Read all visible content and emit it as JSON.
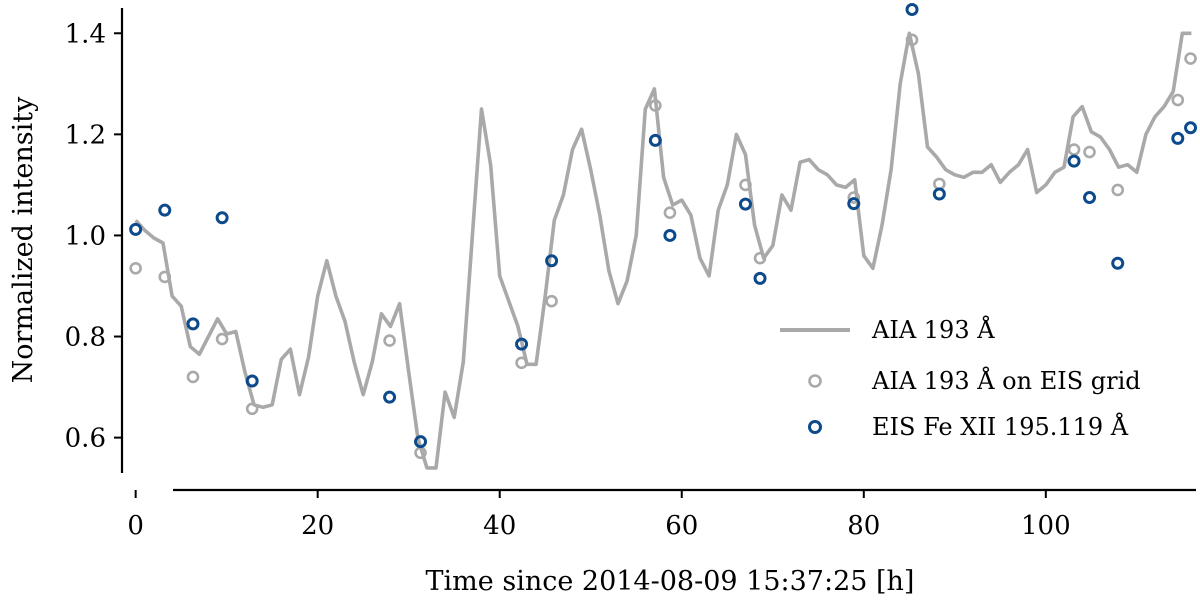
{
  "chart_data": {
    "type": "line",
    "xlabel": "Time since 2014-08-09 15:37:25 [h]",
    "ylabel": "Normalized intensity",
    "xlim": [
      -1.5,
      116.5
    ],
    "ylim": [
      0.53,
      1.45
    ],
    "x_ticks": [
      0,
      20,
      40,
      60,
      80,
      100
    ],
    "y_ticks": [
      0.6,
      0.8,
      1.0,
      1.2,
      1.4
    ],
    "x_tick_labels": [
      "0",
      "20",
      "40",
      "60",
      "80",
      "100"
    ],
    "y_tick_labels": [
      "0.6",
      "0.8",
      "1.0",
      "1.2",
      "1.4"
    ],
    "grid": false,
    "legend_position": "right",
    "colors": {
      "aia": "#a9a9a9",
      "eis": "#0d4a8c",
      "axis": "#000000"
    },
    "series": [
      {
        "name": "AIA 193 Å",
        "kind": "line",
        "x": [
          0,
          1,
          2,
          3,
          4,
          5,
          6,
          7,
          8,
          9,
          10,
          11,
          12,
          13,
          14,
          15,
          16,
          17,
          18,
          19,
          20,
          21,
          22,
          23,
          24,
          25,
          26,
          27,
          28,
          29,
          30,
          31,
          32,
          33,
          34,
          35,
          36,
          37,
          38,
          39,
          40,
          41,
          42,
          43,
          44,
          45,
          46,
          47,
          48,
          49,
          50,
          51,
          52,
          53,
          54,
          55,
          56,
          57,
          58,
          59,
          60,
          61,
          62,
          63,
          64,
          65,
          66,
          67,
          68,
          69,
          70,
          71,
          72,
          73,
          74,
          75,
          76,
          77,
          78,
          79,
          80,
          81,
          82,
          83,
          84,
          85,
          86,
          87,
          88,
          89,
          90,
          91,
          92,
          93,
          94,
          95,
          96,
          97,
          98,
          99,
          100,
          101,
          102,
          103,
          104,
          105,
          106,
          107,
          108,
          109,
          110,
          111,
          112,
          113,
          114,
          115,
          116
        ],
        "y": [
          1.03,
          1.01,
          0.995,
          0.985,
          0.88,
          0.86,
          0.78,
          0.765,
          0.8,
          0.835,
          0.805,
          0.81,
          0.73,
          0.665,
          0.66,
          0.665,
          0.755,
          0.775,
          0.685,
          0.76,
          0.88,
          0.95,
          0.88,
          0.83,
          0.75,
          0.685,
          0.75,
          0.845,
          0.82,
          0.865,
          0.73,
          0.6,
          0.54,
          0.54,
          0.69,
          0.64,
          0.75,
          1.0,
          1.25,
          1.14,
          0.92,
          0.87,
          0.82,
          0.745,
          0.745,
          0.88,
          1.03,
          1.08,
          1.17,
          1.21,
          1.13,
          1.04,
          0.93,
          0.865,
          0.91,
          1.0,
          1.25,
          1.29,
          1.115,
          1.06,
          1.07,
          1.04,
          0.955,
          0.92,
          1.05,
          1.1,
          1.2,
          1.16,
          1.02,
          0.955,
          0.98,
          1.08,
          1.05,
          1.145,
          1.15,
          1.13,
          1.12,
          1.1,
          1.095,
          1.11,
          0.96,
          0.935,
          1.02,
          1.13,
          1.3,
          1.4,
          1.32,
          1.175,
          1.155,
          1.13,
          1.12,
          1.115,
          1.125,
          1.125,
          1.14,
          1.105,
          1.125,
          1.14,
          1.17,
          1.085,
          1.1,
          1.125,
          1.135,
          1.235,
          1.255,
          1.205,
          1.195,
          1.17,
          1.135,
          1.14,
          1.125,
          1.2,
          1.235,
          1.255,
          1.285,
          1.4,
          1.4
        ]
      },
      {
        "name": "AIA 193 Å on EIS grid",
        "kind": "scatter-hollow",
        "x": [
          0,
          3.2,
          6.3,
          9.5,
          12.8,
          27.9,
          31.3,
          42.4,
          45.7,
          57.1,
          58.7,
          67,
          68.6,
          78.9,
          85.3,
          88.3,
          103.1,
          104.8,
          107.9,
          114.5,
          115.9
        ],
        "y": [
          0.935,
          0.918,
          0.72,
          0.795,
          0.657,
          0.792,
          0.57,
          0.748,
          0.87,
          1.257,
          1.045,
          1.1,
          0.955,
          1.075,
          1.387,
          1.102,
          1.17,
          1.165,
          1.09,
          1.268,
          1.35
        ]
      },
      {
        "name": "EIS Fe XII 195.119 Å",
        "kind": "scatter-hollow",
        "x": [
          0,
          3.2,
          6.3,
          9.5,
          12.8,
          27.9,
          31.3,
          42.4,
          45.7,
          57.1,
          58.7,
          67,
          68.6,
          78.9,
          85.3,
          88.3,
          103.1,
          104.8,
          107.9,
          114.5,
          115.9
        ],
        "y": [
          1.012,
          1.05,
          0.825,
          1.035,
          0.712,
          0.68,
          0.592,
          0.785,
          0.95,
          1.188,
          1.0,
          1.062,
          0.915,
          1.063,
          1.447,
          1.082,
          1.147,
          1.075,
          0.945,
          1.192,
          1.213
        ]
      }
    ]
  }
}
